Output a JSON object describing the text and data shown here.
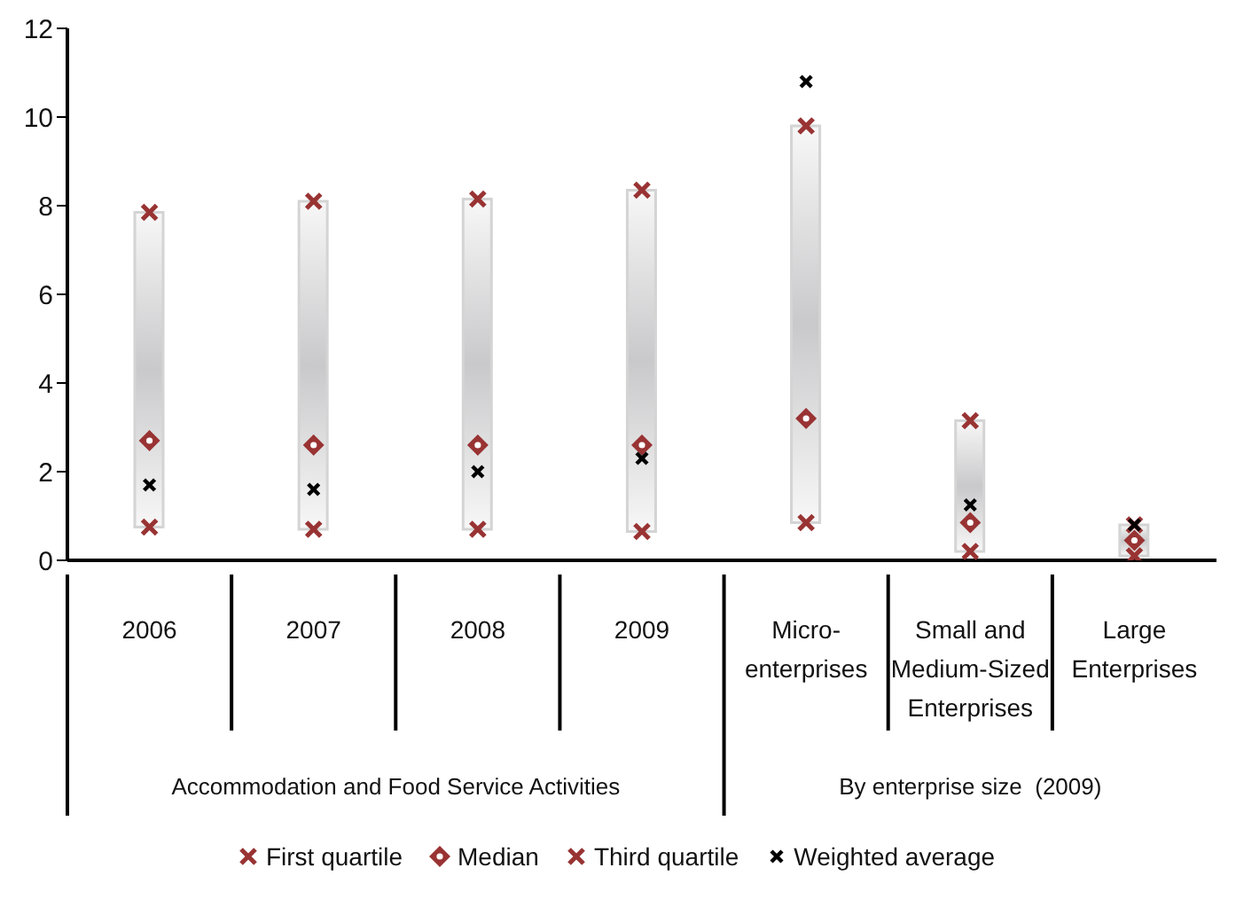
{
  "chart_data": {
    "type": "scatter",
    "categories": [
      "2006",
      "2007",
      "2008",
      "2009",
      "Micro-enterprises",
      "Small and Medium-Sized Enterprises",
      "Large Enterprises"
    ],
    "series": [
      {
        "type": "bar",
        "color": "#c9c9cb",
        "base": [
          0.75,
          0.7,
          0.7,
          0.65,
          0.85,
          0.2,
          0.1
        ],
        "values": [
          7.1,
          7.4,
          7.45,
          7.7,
          8.95,
          2.95,
          0.7
        ]
      },
      {
        "name": "First quartile",
        "color": "#993333",
        "marker": "cross",
        "values": [
          0.75,
          0.7,
          0.7,
          0.65,
          0.85,
          0.2,
          0.1
        ]
      },
      {
        "name": "Median",
        "color": "#993333",
        "marker": "diamond",
        "values": [
          2.7,
          2.6,
          2.6,
          2.6,
          3.2,
          0.85,
          0.45
        ]
      },
      {
        "name": "Third quartile",
        "color": "#993333",
        "marker": "cross",
        "values": [
          7.85,
          8.1,
          8.15,
          8.35,
          9.8,
          3.15,
          0.8
        ]
      },
      {
        "name": "Weighted average",
        "color": "#000000",
        "marker": "cross",
        "values": [
          1.7,
          1.6,
          2.0,
          2.3,
          10.8,
          1.25,
          0.8
        ]
      }
    ],
    "ylim": [
      0,
      12
    ],
    "yticks": [
      0,
      2,
      4,
      6,
      8,
      10,
      12
    ],
    "legend": "bottom",
    "grid": false,
    "annotations": [
      "Accommodation and Food Service Activities",
      "By enterprise size  (2009)"
    ]
  }
}
